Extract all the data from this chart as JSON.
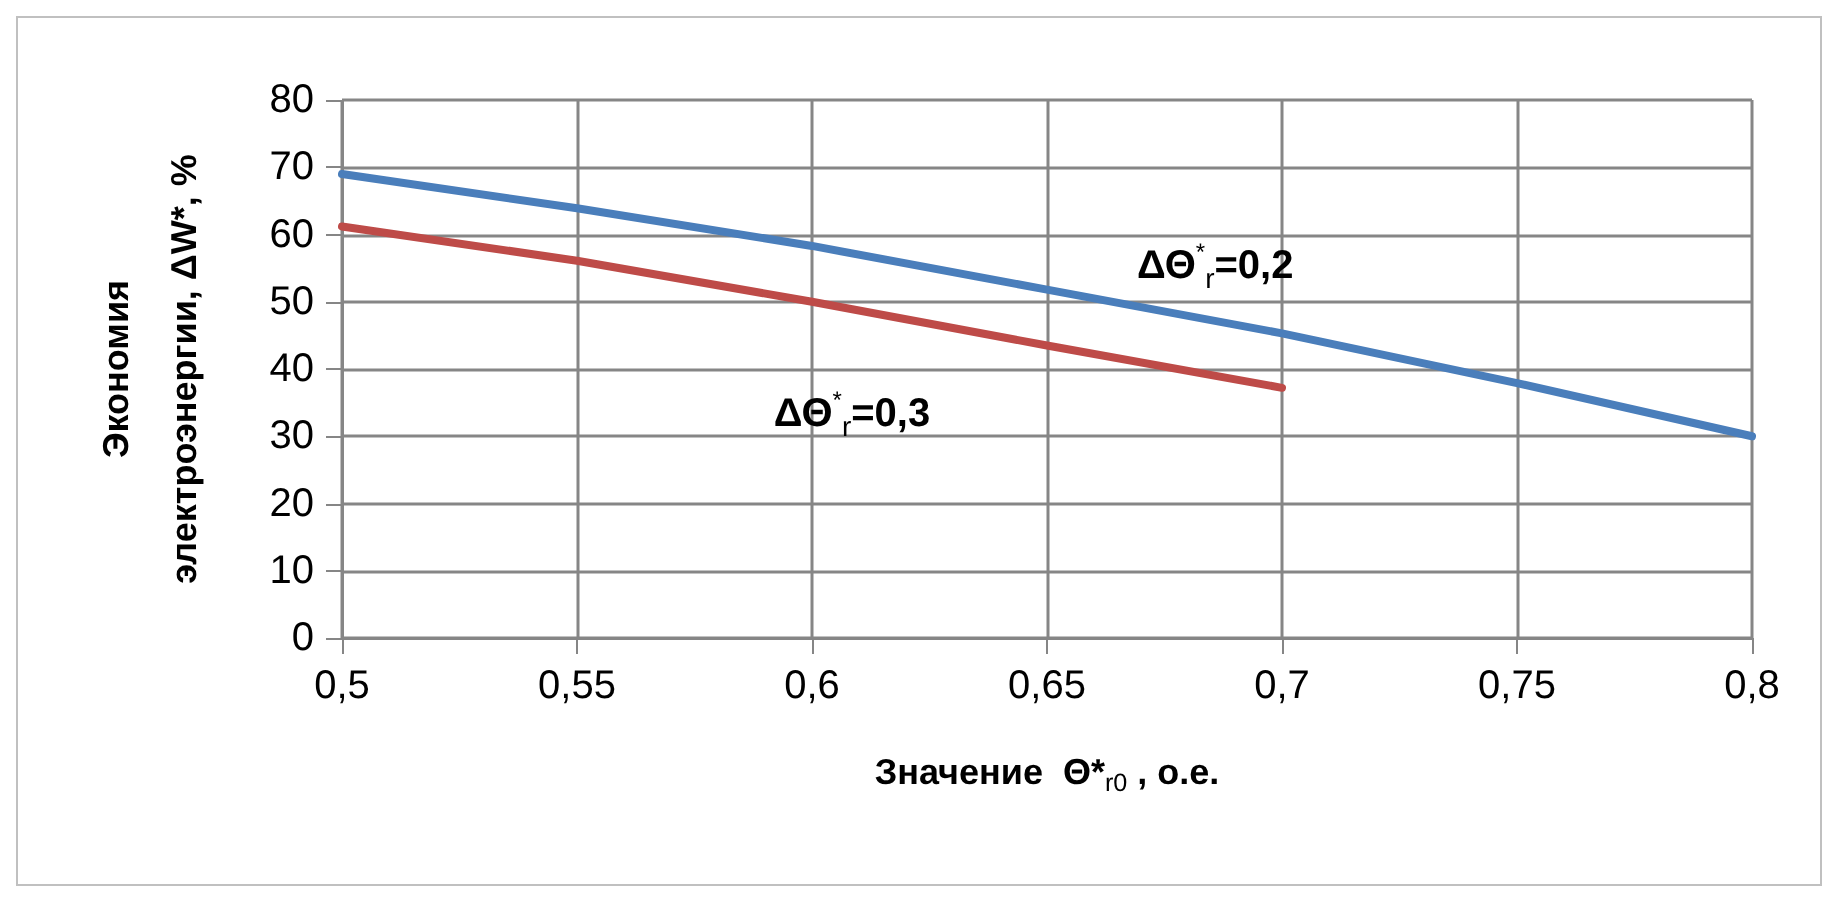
{
  "chart_data": {
    "type": "line",
    "xlabel": "Значение  Θ*$_{r0}$ , о.е.",
    "ylabel": "Экономия\nэлектроэнергии, ΔW*, %",
    "x": [
      0.5,
      0.55,
      0.6,
      0.65,
      0.7,
      0.75,
      0.8
    ],
    "series": [
      {
        "name": "ΔΘ$^{*}$$_{r}$=0,2",
        "color": "#4a7ebb",
        "values": [
          69,
          63.9,
          58.3,
          51.8,
          45.3,
          37.9,
          30
        ]
      },
      {
        "name": "ΔΘ$^{*}$$_{r}$=0,3",
        "color": "#be4b48",
        "x": [
          0.5,
          0.55,
          0.6,
          0.65,
          0.7
        ],
        "values": [
          61.2,
          56.1,
          50,
          43.5,
          37.2
        ]
      }
    ],
    "xlim": [
      0.5,
      0.8
    ],
    "xticks": [
      {
        "value": 0.5,
        "label": "0,5"
      },
      {
        "value": 0.55,
        "label": "0,55"
      },
      {
        "value": 0.6,
        "label": "0,6"
      },
      {
        "value": 0.65,
        "label": "0,65"
      },
      {
        "value": 0.7,
        "label": "0,7"
      },
      {
        "value": 0.75,
        "label": "0,75"
      },
      {
        "value": 0.8,
        "label": "0,8"
      }
    ],
    "ylim": [
      0,
      80
    ],
    "yticks": [
      0,
      10,
      20,
      30,
      40,
      50,
      60,
      70,
      80
    ],
    "grid": true,
    "legend": false,
    "marker": "none",
    "line_style": "solid"
  }
}
